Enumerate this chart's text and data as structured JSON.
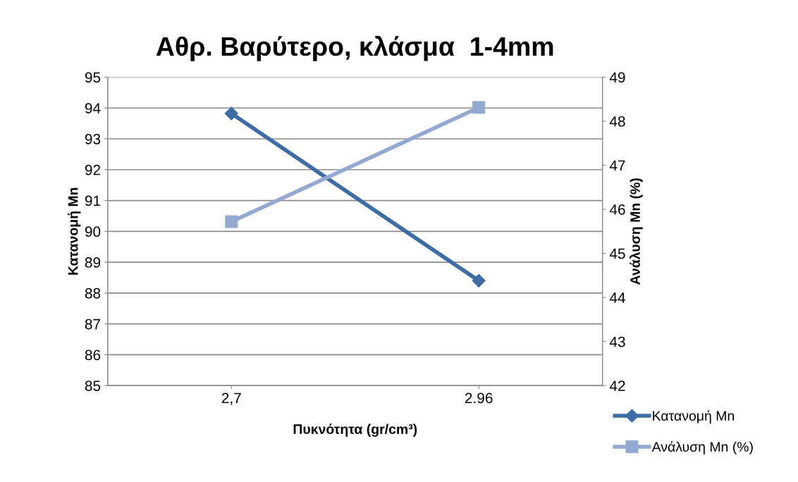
{
  "chart_data": {
    "type": "line",
    "title": "Αθρ. Βαρύτερο, κλάσμα  1-4mm",
    "xlabel": "Πυκνότητα (gr/cm³)",
    "ylabel": "Κατανομή Mn",
    "y2label": "Ανάλυση Mn (%)",
    "categories": [
      "2,7",
      "2.96"
    ],
    "series": [
      {
        "name": "Κατανομή Mn",
        "color": "#3e6ca6",
        "values": [
          93.82,
          88.4
        ],
        "marker": "diamond"
      },
      {
        "name": "Ανάλυση Mn (%)",
        "color": "#93a9d2",
        "values": [
          45.72,
          48.31
        ],
        "axis": "y2",
        "marker": "square"
      }
    ],
    "ylim": [
      85,
      95
    ],
    "yticks": [
      85,
      86,
      87,
      88,
      89,
      90,
      91,
      92,
      93,
      94,
      95
    ],
    "y2lim": [
      42,
      49
    ],
    "y2ticks": [
      42,
      43,
      44,
      45,
      46,
      47,
      48,
      49
    ],
    "grid": "y",
    "legend": "bottom right"
  }
}
